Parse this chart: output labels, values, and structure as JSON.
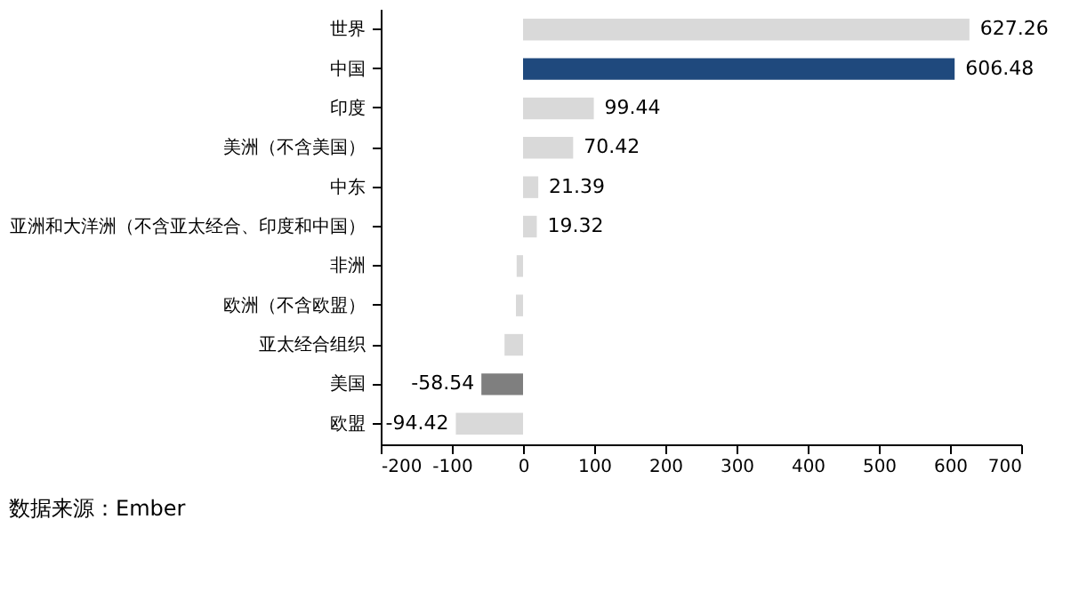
{
  "chart_data": {
    "type": "bar",
    "orientation": "horizontal",
    "categories": [
      "世界",
      "中国",
      "印度",
      "美洲（不含美国）",
      "中东",
      "亚洲和大洋洲（不含亚太经合、印度和中国）",
      "非洲",
      "欧洲（不含欧盟）",
      "亚太经合组织",
      "美国",
      "欧盟"
    ],
    "values": [
      627.26,
      606.48,
      99.44,
      70.42,
      21.39,
      19.32,
      -9,
      -10,
      -26,
      -58.54,
      -94.42
    ],
    "colors": [
      "#d9d9d9",
      "#1f497d",
      "#d9d9d9",
      "#d9d9d9",
      "#d9d9d9",
      "#d9d9d9",
      "#d9d9d9",
      "#d9d9d9",
      "#d9d9d9",
      "#7f7f7f",
      "#d9d9d9"
    ],
    "value_labels": [
      "627.26",
      "606.48",
      "99.44",
      "70.42",
      "21.39",
      "19.32",
      null,
      null,
      null,
      "-58.54",
      "-94.42"
    ],
    "xlim": [
      -200,
      700
    ],
    "xticks": [
      -200,
      -100,
      0,
      100,
      200,
      300,
      400,
      500,
      600,
      700
    ],
    "grid": false,
    "annotations": [
      "数据来源：Ember"
    ]
  }
}
